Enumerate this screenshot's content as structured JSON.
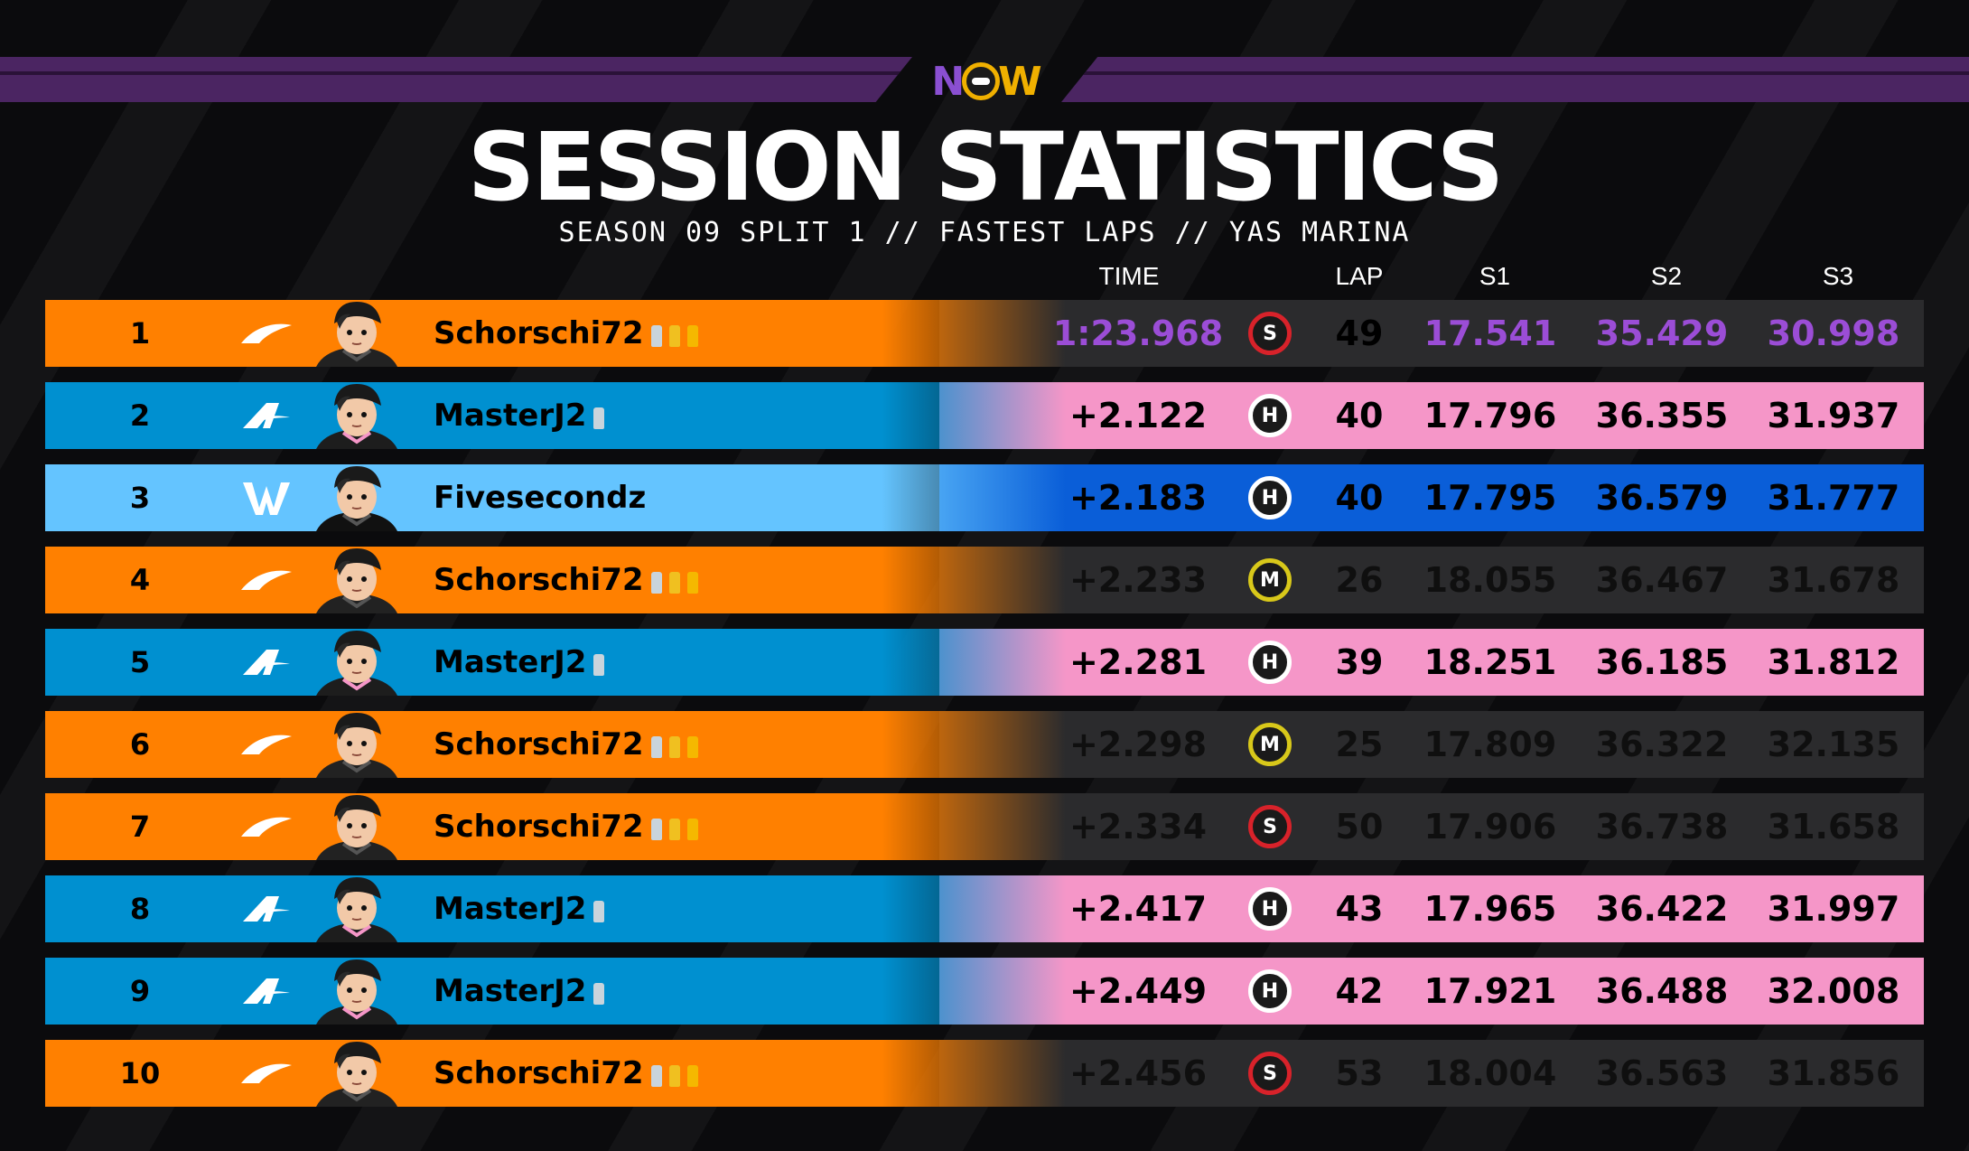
{
  "header": {
    "logo_text_n": "N",
    "logo_text_w": "W",
    "title": "SESSION STATISTICS",
    "subtitle": "SEASON 09 SPLIT 1 // FASTEST LAPS // YAS MARINA"
  },
  "columns": {
    "time": "TIME",
    "lap": "LAP",
    "s1": "S1",
    "s2": "S2",
    "s3": "S3"
  },
  "colors": {
    "mclaren_orange": "#ff8000",
    "alpine_blue": "#0090d0",
    "alpine_pink": "#f596c8",
    "williams_light": "#64c4ff",
    "williams_dark": "#0a5ed8",
    "dark_panel": "#2b2b2d",
    "fastest_purple": "#9b4dd6",
    "soft_red": "#d8222a",
    "medium_yellow": "#d8c81a",
    "hard_white": "#ffffff"
  },
  "rows": [
    {
      "pos": "1",
      "team": "mclaren-logo-icon",
      "driver": "Schorschi72",
      "trophies": [
        "silver",
        "gold",
        "gold-star"
      ],
      "time": "1:23.968",
      "tyre": "S",
      "lap": "49",
      "s1": "17.541",
      "s2": "35.429",
      "s3": "30.998",
      "fastest": true
    },
    {
      "pos": "2",
      "team": "alpine-logo-icon",
      "driver": "MasterJ2",
      "trophies": [
        "silver"
      ],
      "time": "+2.122",
      "tyre": "H",
      "lap": "40",
      "s1": "17.796",
      "s2": "36.355",
      "s3": "31.937"
    },
    {
      "pos": "3",
      "team": "williams-logo-icon",
      "driver": "Fivesecondz",
      "trophies": [],
      "time": "+2.183",
      "tyre": "H",
      "lap": "40",
      "s1": "17.795",
      "s2": "36.579",
      "s3": "31.777"
    },
    {
      "pos": "4",
      "team": "mclaren-logo-icon",
      "driver": "Schorschi72",
      "trophies": [
        "silver",
        "gold",
        "gold-star"
      ],
      "time": "+2.233",
      "tyre": "M",
      "lap": "26",
      "s1": "18.055",
      "s2": "36.467",
      "s3": "31.678"
    },
    {
      "pos": "5",
      "team": "alpine-logo-icon",
      "driver": "MasterJ2",
      "trophies": [
        "silver"
      ],
      "time": "+2.281",
      "tyre": "H",
      "lap": "39",
      "s1": "18.251",
      "s2": "36.185",
      "s3": "31.812"
    },
    {
      "pos": "6",
      "team": "mclaren-logo-icon",
      "driver": "Schorschi72",
      "trophies": [
        "silver",
        "gold",
        "gold-star"
      ],
      "time": "+2.298",
      "tyre": "M",
      "lap": "25",
      "s1": "17.809",
      "s2": "36.322",
      "s3": "32.135"
    },
    {
      "pos": "7",
      "team": "mclaren-logo-icon",
      "driver": "Schorschi72",
      "trophies": [
        "silver",
        "gold",
        "gold-star"
      ],
      "time": "+2.334",
      "tyre": "S",
      "lap": "50",
      "s1": "17.906",
      "s2": "36.738",
      "s3": "31.658"
    },
    {
      "pos": "8",
      "team": "alpine-logo-icon",
      "driver": "MasterJ2",
      "trophies": [
        "silver"
      ],
      "time": "+2.417",
      "tyre": "H",
      "lap": "43",
      "s1": "17.965",
      "s2": "36.422",
      "s3": "31.997"
    },
    {
      "pos": "9",
      "team": "alpine-logo-icon",
      "driver": "MasterJ2",
      "trophies": [
        "silver"
      ],
      "time": "+2.449",
      "tyre": "H",
      "lap": "42",
      "s1": "17.921",
      "s2": "36.488",
      "s3": "32.008"
    },
    {
      "pos": "10",
      "team": "mclaren-logo-icon",
      "driver": "Schorschi72",
      "trophies": [
        "silver",
        "gold",
        "gold-star"
      ],
      "time": "+2.456",
      "tyre": "S",
      "lap": "53",
      "s1": "18.004",
      "s2": "36.563",
      "s3": "31.856"
    }
  ]
}
